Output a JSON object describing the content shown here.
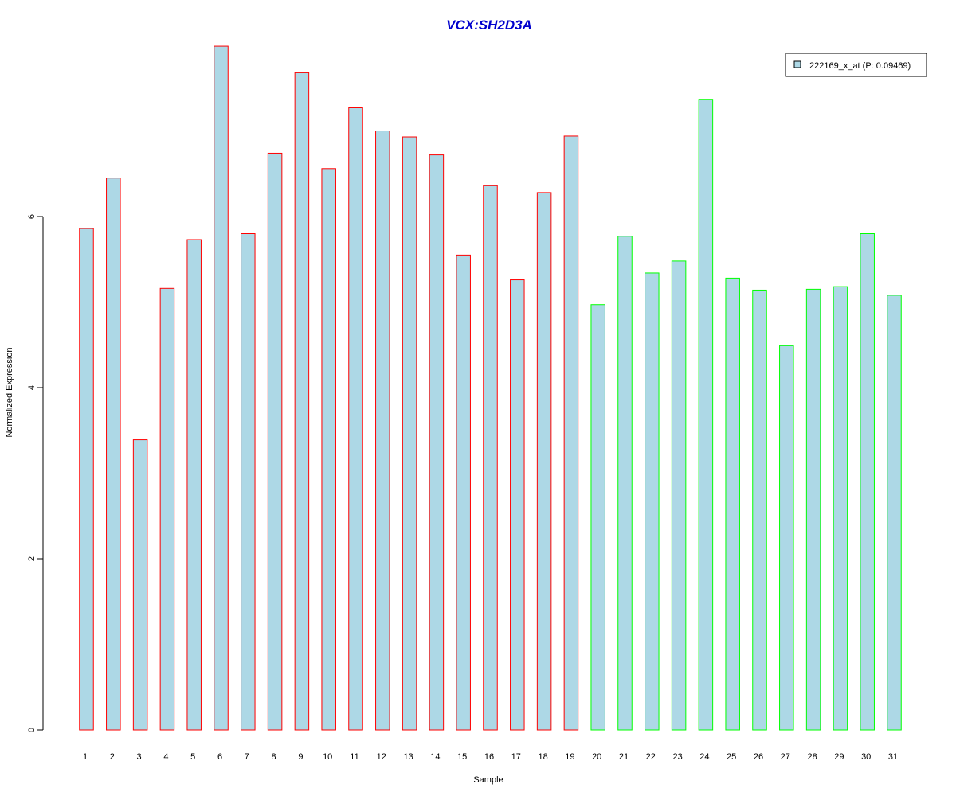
{
  "chart_data": {
    "type": "bar",
    "title": "VCX:SH2D3A",
    "xlabel": "Sample",
    "ylabel": "Normalized Expression",
    "categories": [
      "1",
      "2",
      "3",
      "4",
      "5",
      "6",
      "7",
      "8",
      "9",
      "10",
      "11",
      "12",
      "13",
      "14",
      "15",
      "16",
      "17",
      "18",
      "19",
      "20",
      "21",
      "22",
      "23",
      "24",
      "25",
      "26",
      "27",
      "28",
      "29",
      "30",
      "31"
    ],
    "series": [
      {
        "name": "222169_x_at (P: 0.09469)",
        "values": [
          5.86,
          6.45,
          3.39,
          5.16,
          5.73,
          7.99,
          5.8,
          6.74,
          7.68,
          6.56,
          7.27,
          7.0,
          6.93,
          6.72,
          5.55,
          6.36,
          5.26,
          6.28,
          6.94,
          4.97,
          5.77,
          5.34,
          5.48,
          7.37,
          5.28,
          5.14,
          4.49,
          5.15,
          5.18,
          5.8,
          5.08
        ]
      }
    ],
    "group_border_colors": [
      "#FF0000",
      "#FF0000",
      "#FF0000",
      "#FF0000",
      "#FF0000",
      "#FF0000",
      "#FF0000",
      "#FF0000",
      "#FF0000",
      "#FF0000",
      "#FF0000",
      "#FF0000",
      "#FF0000",
      "#FF0000",
      "#FF0000",
      "#FF0000",
      "#FF0000",
      "#FF0000",
      "#FF0000",
      "#00FF00",
      "#00FF00",
      "#00FF00",
      "#00FF00",
      "#00FF00",
      "#00FF00",
      "#00FF00",
      "#00FF00",
      "#00FF00",
      "#00FF00",
      "#00FF00",
      "#00FF00"
    ],
    "bar_fill": "#ADD8E6",
    "title_color": "#0000CD",
    "ylim": [
      0,
      8
    ],
    "yticks": [
      0,
      2,
      4,
      6
    ],
    "grid": false,
    "legend_position": "top-right"
  }
}
